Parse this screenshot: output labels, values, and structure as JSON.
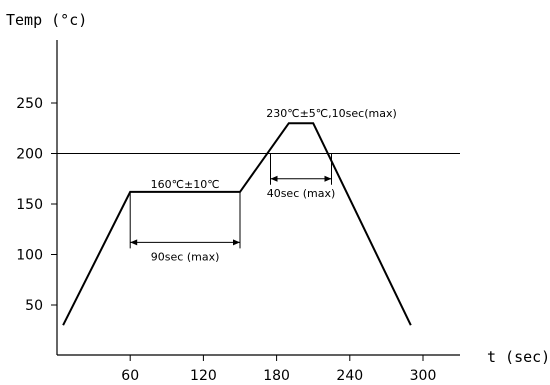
{
  "chart_data": {
    "type": "line",
    "ylabel": "Temp (°c)",
    "xlabel": "t (sec)",
    "xlim": [
      0,
      300
    ],
    "ylim": [
      20,
      300
    ],
    "x_ticks": [
      60,
      120,
      180,
      240,
      300
    ],
    "y_ticks": [
      50,
      100,
      150,
      200,
      250
    ],
    "reference_line": {
      "y": 200
    },
    "series": [
      {
        "x": [
          5,
          60,
          150,
          190,
          210,
          290
        ],
        "y": [
          30,
          162,
          162,
          230,
          230,
          30
        ]
      }
    ],
    "annotations": [
      {
        "text": "160℃±10℃",
        "x": 105,
        "y": 170,
        "dimension": {
          "x1": 60,
          "x2": 150,
          "y": 112,
          "ext_to": 162,
          "label": "90sec (max)"
        }
      },
      {
        "text": "230℃±5℃,10sec(max)",
        "x": 225,
        "y": 240,
        "dimension": {
          "x1": 175,
          "x2": 225,
          "y": 175,
          "ext_to": 200,
          "label": "40sec (max)"
        }
      }
    ]
  }
}
